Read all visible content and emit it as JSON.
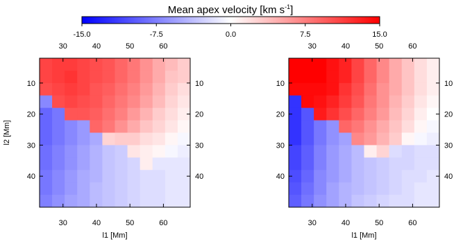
{
  "colorbar": {
    "title": "Mean apex velocity [km s",
    "title_exp": "-1",
    "title_close": "]",
    "min": -15.0,
    "max": 15.0,
    "ticks": [
      {
        "value": -15.0,
        "label": "-15.0"
      },
      {
        "value": -7.5,
        "label": "-7.5"
      },
      {
        "value": 0.0,
        "label": "0.0"
      },
      {
        "value": 7.5,
        "label": "7.5"
      },
      {
        "value": 15.0,
        "label": "15.0"
      }
    ],
    "low_color": "#0000ff",
    "mid_color": "#ffffff",
    "high_color": "#ff0000"
  },
  "chart_data": [
    {
      "type": "heatmap",
      "xlabel": "l1 [Mm]",
      "ylabel": "l2 [Mm]",
      "xlim": [
        23,
        68
      ],
      "ylim": [
        50,
        2
      ],
      "x_ticks": [
        30,
        40,
        50,
        60
      ],
      "y_ticks": [
        10,
        20,
        30,
        40
      ],
      "x": [
        24,
        28,
        32,
        36,
        40,
        44,
        48,
        52,
        56,
        60,
        64,
        68
      ],
      "y": [
        2,
        6,
        10,
        14,
        18,
        22,
        26,
        30,
        34,
        38,
        42,
        46
      ],
      "values": [
        [
          11,
          11.5,
          11.5,
          11,
          10.5,
          10,
          9,
          8,
          6.5,
          5,
          4,
          3
        ],
        [
          11,
          11.5,
          12,
          11,
          10.5,
          10,
          9,
          8,
          6.5,
          5,
          3.5,
          3
        ],
        [
          10.5,
          11,
          11.5,
          11,
          10,
          9.5,
          8.5,
          7.5,
          6,
          4.5,
          3,
          2
        ],
        [
          -7,
          10.5,
          11,
          10.5,
          10,
          9,
          8,
          7,
          5.5,
          4,
          2.5,
          1.5
        ],
        [
          -9,
          -8,
          10,
          10,
          9.5,
          8.5,
          7.5,
          6,
          4.5,
          3,
          2,
          1
        ],
        [
          -9,
          -8,
          -7,
          -6,
          9,
          8,
          6.5,
          5,
          3.5,
          2.5,
          1.5,
          0.5
        ],
        [
          -9,
          -8,
          -7,
          -6,
          -5,
          2.5,
          3,
          3,
          2,
          1.5,
          0.5,
          -0.5
        ],
        [
          -8.5,
          -7.5,
          -6.5,
          -5.5,
          -4.5,
          -3.5,
          -3,
          1.5,
          1,
          0.5,
          -0.5,
          -1
        ],
        [
          -8.5,
          -7.5,
          -6.5,
          -5.5,
          -4.5,
          -3.5,
          -3,
          -2.5,
          1,
          -1.5,
          -1.5,
          -1.5
        ],
        [
          -8,
          -7,
          -6,
          -5,
          -4.5,
          -3.5,
          -3,
          -2.5,
          -2,
          -2,
          -1.5,
          -1.5
        ],
        [
          -8,
          -7,
          -6,
          -5,
          -4,
          -3.5,
          -3,
          -2.5,
          -2,
          -2,
          -1.5,
          -1.5
        ],
        [
          -7.5,
          -6.5,
          -5.5,
          -5,
          -4,
          -3.5,
          -3,
          -2.5,
          -2,
          -2,
          -1.5,
          -1.5
        ]
      ]
    },
    {
      "type": "heatmap",
      "xlabel": "l1 [Mm]",
      "ylabel": "",
      "xlim": [
        23,
        68
      ],
      "ylim": [
        50,
        2
      ],
      "x_ticks": [
        30,
        40,
        50,
        60
      ],
      "y_ticks": [
        10,
        20,
        30,
        40
      ],
      "x": [
        24,
        28,
        32,
        36,
        40,
        44,
        48,
        52,
        56,
        60,
        64,
        68
      ],
      "y": [
        2,
        6,
        10,
        14,
        18,
        22,
        26,
        30,
        34,
        38,
        42,
        46
      ],
      "values": [
        [
          15,
          15,
          15,
          14,
          13,
          11,
          9,
          7,
          5,
          3.5,
          2,
          1
        ],
        [
          15,
          15,
          15,
          14,
          13,
          11,
          9,
          7,
          5,
          3.5,
          2,
          1
        ],
        [
          14.5,
          14.5,
          14.5,
          14,
          12,
          10.5,
          8.5,
          6.5,
          5,
          3.5,
          2,
          1
        ],
        [
          -12,
          14.5,
          14,
          13,
          11.5,
          10,
          8,
          6.5,
          4.5,
          3,
          1.5,
          0.5
        ],
        [
          -12,
          -10,
          13.5,
          12,
          10.5,
          9,
          7.5,
          6,
          4,
          2.5,
          1,
          0
        ],
        [
          -12,
          -10,
          -8,
          -6.5,
          9,
          8,
          6.5,
          5,
          3.5,
          2,
          0.5,
          -0.5
        ],
        [
          -12,
          -10,
          -8,
          -6.5,
          -5.5,
          7,
          6,
          4.5,
          3,
          0.5,
          -0.5,
          -1
        ],
        [
          -11,
          -9.5,
          -7.5,
          -6,
          -5,
          -4,
          1,
          2.5,
          -2,
          -2.5,
          -2,
          -2
        ],
        [
          -11,
          -9.5,
          -7.5,
          -6,
          -5,
          -4,
          -3.5,
          -3,
          -2.5,
          -2.5,
          -2,
          -2
        ],
        [
          -10.5,
          -9,
          -7,
          -6,
          -5,
          -4,
          -3.5,
          -3,
          -2.5,
          -2,
          -2,
          -1.5
        ],
        [
          -10,
          -8.5,
          -7,
          -5.5,
          -4.5,
          -4,
          -3.5,
          -3,
          -2.5,
          -2,
          -1.5,
          -1.5
        ],
        [
          -9.5,
          -8,
          -6.5,
          -5.5,
          -4.5,
          -3.5,
          -3,
          -2.5,
          -2,
          -2,
          -1.5,
          -1.5
        ]
      ]
    }
  ]
}
